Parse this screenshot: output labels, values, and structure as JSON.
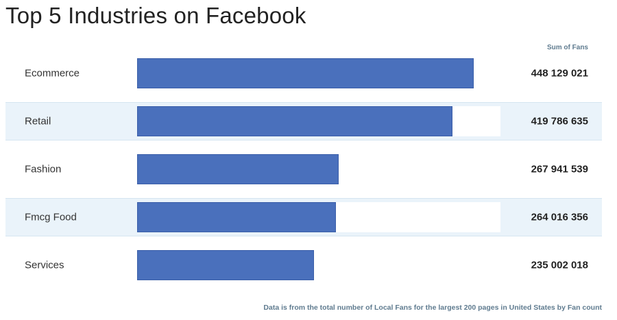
{
  "header": {
    "title": "Top 5 Industries on Facebook",
    "column_header": "Sum of Fans"
  },
  "footnote": "Data is from the total number of Local Fans for the largest 200 pages in United States by Fan count",
  "colors": {
    "bar": "#4a70bc",
    "row_shade": "#eaf3fa"
  },
  "chart_data": {
    "type": "bar",
    "orientation": "horizontal",
    "title": "Top 5 Industries on Facebook",
    "categories": [
      "Ecommerce",
      "Retail",
      "Fashion",
      "Fmcg Food",
      "Services"
    ],
    "values": [
      448129021,
      419786635,
      267941539,
      264016356,
      235002018
    ],
    "value_labels": [
      "448 129 021",
      "419 786 635",
      "267 941 539",
      "264 016 356",
      "235 002 018"
    ],
    "series": [
      {
        "name": "Sum of Fans",
        "values": [
          448129021,
          419786635,
          267941539,
          264016356,
          235002018
        ]
      }
    ],
    "xlim": [
      0,
      486000000
    ],
    "grid": false,
    "legend": "none"
  }
}
